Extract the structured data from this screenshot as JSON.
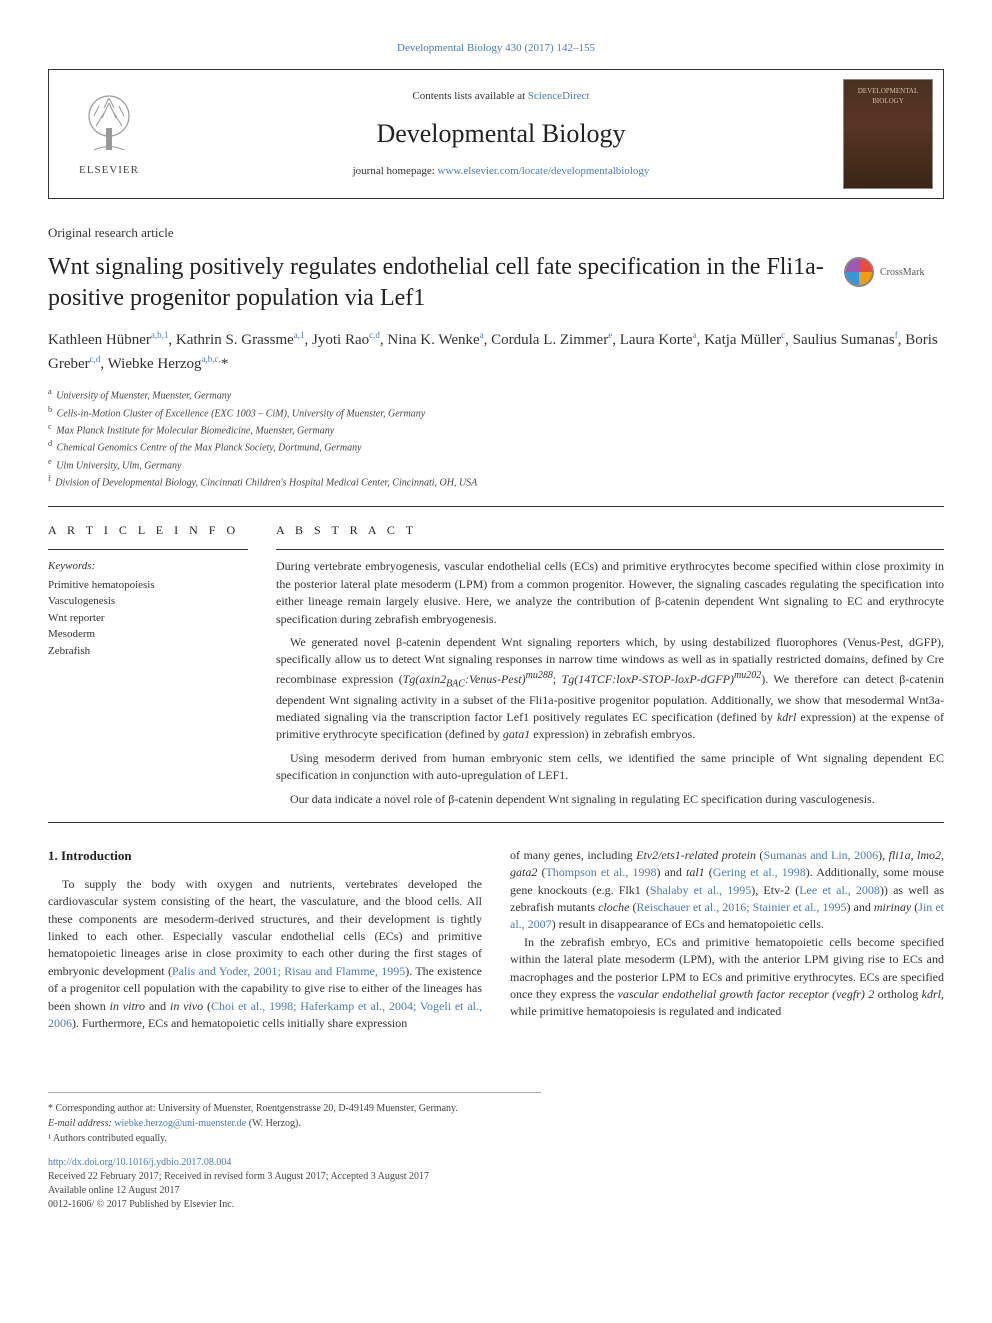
{
  "top_citation": "Developmental Biology 430 (2017) 142–155",
  "header": {
    "contents_prefix": "Contents lists available at ",
    "sciencedirect": "ScienceDirect",
    "journal_name": "Developmental Biology",
    "homepage_prefix": "journal homepage: ",
    "homepage_url": "www.elsevier.com/locate/developmentalbiology",
    "publisher_name": "ELSEVIER",
    "cover_label1": "DEVELOPMENTAL",
    "cover_label2": "BIOLOGY"
  },
  "article_type": "Original research article",
  "title": "Wnt signaling positively regulates endothelial cell fate specification in the Fli1a-positive progenitor population via Lef1",
  "crossmark_label": "CrossMark",
  "authors_html": "Kathleen Hübner<sup>a,b,1</sup>, Kathrin S. Grassme<sup>a,1</sup>, Jyoti Rao<sup>c,d</sup>, Nina K. Wenke<sup>a</sup>, Cordula L. Zimmer<sup>e</sup>, Laura Korte<sup>a</sup>, Katja Müller<sup>c</sup>, Saulius Sumanas<sup>f</sup>, Boris Greber<sup>c,d</sup>, Wiebke Herzog<sup>a,b,c,</sup>*",
  "affiliations": [
    {
      "sup": "a",
      "text": "University of Muenster, Muenster, Germany"
    },
    {
      "sup": "b",
      "text": "Cells-in-Motion Cluster of Excellence (EXC 1003 – CiM), University of Muenster, Germany"
    },
    {
      "sup": "c",
      "text": "Max Planck Institute for Molecular Biomedicine, Muenster, Germany"
    },
    {
      "sup": "d",
      "text": "Chemical Genomics Centre of the Max Planck Society, Dortmund, Germany"
    },
    {
      "sup": "e",
      "text": "Ulm University, Ulm, Germany"
    },
    {
      "sup": "f",
      "text": "Division of Developmental Biology, Cincinnati Children's Hospital Medical Center, Cincinnati, OH, USA"
    }
  ],
  "info_heading": "A R T I C L E  I N F O",
  "abstract_heading": "A B S T R A C T",
  "keywords_label": "Keywords:",
  "keywords": [
    "Primitive hematopoiesis",
    "Vasculogenesis",
    "Wnt reporter",
    "Mesoderm",
    "Zebrafish"
  ],
  "abstract_paragraphs": [
    "During vertebrate embryogenesis, vascular endothelial cells (ECs) and primitive erythrocytes become specified within close proximity in the posterior lateral plate mesoderm (LPM) from a common progenitor. However, the signaling cascades regulating the specification into either lineage remain largely elusive. Here, we analyze the contribution of β-catenin dependent Wnt signaling to EC and erythrocyte specification during zebrafish embryogenesis.",
    "We generated novel β-catenin dependent Wnt signaling reporters which, by using destabilized fluorophores (Venus-Pest, dGFP), specifically allow us to detect Wnt signaling responses in narrow time windows as well as in spatially restricted domains, defined by Cre recombinase expression (<i>Tg(axin2<sub>BAC</sub>:Venus-Pest)<sup>mu288</sup></i>; <i>Tg(14TCF:loxP-STOP-loxP-dGFP)<sup>mu202</sup></i>). We therefore can detect β-catenin dependent Wnt signaling activity in a subset of the Fli1a-positive progenitor population. Additionally, we show that mesodermal Wnt3a-mediated signaling via the transcription factor Lef1 positively regulates EC specification (defined by <i>kdrl</i> expression) at the expense of primitive erythrocyte specification (defined by <i>gata1</i> expression) in zebrafish embryos.",
    "Using mesoderm derived from human embryonic stem cells, we identified the same principle of Wnt signaling dependent EC specification in conjunction with auto-upregulation of LEF1.",
    "Our data indicate a novel role of β-catenin dependent Wnt signaling in regulating EC specification during vasculogenesis."
  ],
  "intro_heading": "1. Introduction",
  "intro_left": "To supply the body with oxygen and nutrients, vertebrates developed the cardiovascular system consisting of the heart, the vasculature, and the blood cells. All these components are mesoderm-derived structures, and their development is tightly linked to each other. Especially vascular endothelial cells (ECs) and primitive hematopoietic lineages arise in close proximity to each other during the first stages of embryonic development (<span class=\"ref\">Palis and Yoder, 2001; Risau and Flamme, 1995</span>). The existence of a progenitor cell population with the capability to give rise to either of the lineages has been shown <i>in vitro</i> and <i>in vivo</i> (<span class=\"ref\">Choi et al., 1998; Haferkamp et al., 2004; Vogeli et al., 2006</span>). Furthermore, ECs and hematopoietic cells initially share expression",
  "intro_right_p1": "of many genes, including <i>Etv2/ets1-related protein</i> (<span class=\"ref\">Sumanas and Lin, 2006</span>), <i>fli1a</i>, <i>lmo2</i>, <i>gata2</i> (<span class=\"ref\">Thompson et al., 1998</span>) and <i>tal1</i> (<span class=\"ref\">Gering et al., 1998</span>). Additionally, some mouse gene knockouts (e.g. Flk1 (<span class=\"ref\">Shalaby et al., 1995</span>), Etv-2 (<span class=\"ref\">Lee et al., 2008</span>)) as well as zebrafish mutants <i>cloche</i> (<span class=\"ref\">Reischauer et al., 2016; Stainier et al., 1995</span>) and <i>mirinay</i> (<span class=\"ref\">Jin et al., 2007</span>) result in disappearance of ECs and hematopoietic cells.",
  "intro_right_p2": "In the zebrafish embryo, ECs and primitive hematopoietic cells become specified within the lateral plate mesoderm (LPM), with the anterior LPM giving rise to ECs and macrophages and the posterior LPM to ECs and primitive erythrocytes. ECs are specified once they express the <i>vascular endothelial growth factor receptor (vegfr) 2</i> ortholog <i>kdrl</i>, while primitive hematopoiesis is regulated and indicated",
  "footnotes": {
    "corr": "* Corresponding author at: University of Muenster, Roentgenstrasse 20, D-49149 Muenster, Germany.",
    "email_label": "E-mail address: ",
    "email": "wiebke.herzog@uni-muenster.de",
    "email_who": " (W. Herzog).",
    "equal": "¹ Authors contributed equally."
  },
  "doi": {
    "link": "http://dx.doi.org/10.1016/j.ydbio.2017.08.004",
    "received": "Received 22 February 2017; Received in revised form 3 August 2017; Accepted 3 August 2017",
    "online": "Available online 12 August 2017",
    "copyright": "0012-1606/ © 2017 Published by Elsevier Inc."
  },
  "colors": {
    "link": "#4a7bb5",
    "text": "#333333",
    "rule": "#333333"
  }
}
